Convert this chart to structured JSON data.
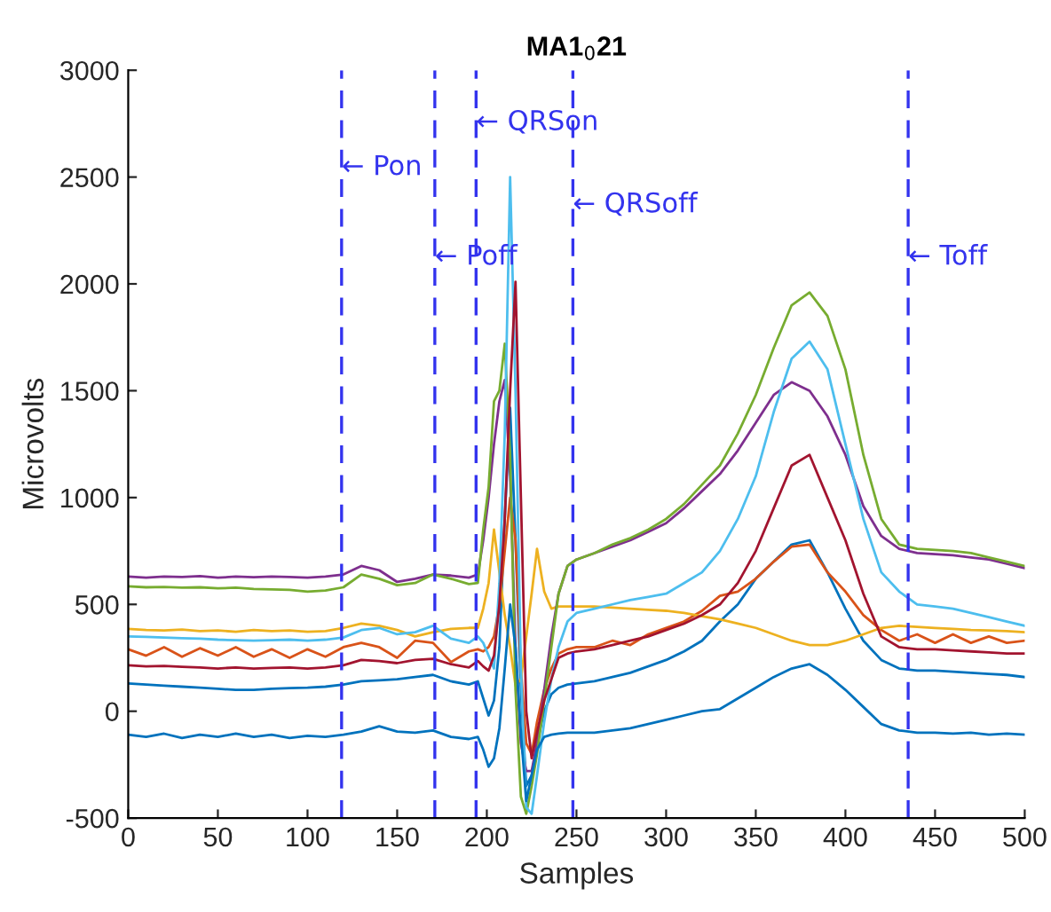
{
  "chart_data": {
    "type": "line",
    "title": "MA1$_{0}$21",
    "xlabel": "Samples",
    "ylabel": "Microvolts",
    "xlim": [
      0,
      500
    ],
    "ylim": [
      -500,
      3000
    ],
    "xticks": [
      0,
      50,
      100,
      150,
      200,
      250,
      300,
      350,
      400,
      450,
      500
    ],
    "yticks": [
      -500,
      0,
      500,
      1000,
      1500,
      2000,
      2500,
      3000
    ],
    "grid": false,
    "legend": false,
    "line_style": "solid",
    "marker": "none",
    "x": [
      0,
      10,
      20,
      30,
      40,
      50,
      60,
      70,
      80,
      90,
      100,
      110,
      120,
      130,
      140,
      150,
      160,
      170,
      180,
      190,
      195,
      198,
      201,
      204,
      207,
      210,
      213,
      216,
      219,
      222,
      225,
      228,
      232,
      236,
      240,
      245,
      250,
      260,
      270,
      280,
      290,
      300,
      310,
      320,
      330,
      340,
      350,
      360,
      370,
      380,
      390,
      400,
      410,
      420,
      430,
      440,
      450,
      460,
      470,
      480,
      490,
      500
    ],
    "series": [
      {
        "color": "#0072bd",
        "values": [
          130,
          125,
          120,
          115,
          110,
          105,
          100,
          100,
          105,
          108,
          110,
          115,
          125,
          140,
          145,
          150,
          160,
          170,
          140,
          125,
          140,
          60,
          -20,
          50,
          300,
          900,
          1420,
          800,
          100,
          -350,
          -300,
          -150,
          0,
          80,
          110,
          125,
          130,
          140,
          160,
          180,
          210,
          240,
          280,
          330,
          420,
          500,
          620,
          700,
          780,
          800,
          650,
          480,
          330,
          240,
          200,
          190,
          190,
          185,
          180,
          175,
          170,
          160
        ]
      },
      {
        "color": "#d95319",
        "values": [
          290,
          260,
          300,
          255,
          295,
          260,
          300,
          255,
          290,
          250,
          290,
          255,
          300,
          320,
          300,
          250,
          330,
          320,
          230,
          280,
          290,
          280,
          300,
          350,
          500,
          750,
          1000,
          800,
          200,
          -150,
          -200,
          -50,
          100,
          200,
          270,
          290,
          300,
          300,
          330,
          310,
          360,
          390,
          420,
          470,
          540,
          560,
          620,
          700,
          770,
          780,
          650,
          560,
          450,
          380,
          330,
          360,
          320,
          360,
          320,
          350,
          320,
          330
        ]
      },
      {
        "color": "#edb120",
        "values": [
          385,
          380,
          378,
          382,
          375,
          378,
          372,
          380,
          375,
          378,
          372,
          375,
          390,
          410,
          400,
          380,
          350,
          370,
          385,
          390,
          390,
          480,
          600,
          850,
          650,
          450,
          300,
          120,
          150,
          350,
          550,
          760,
          560,
          480,
          490,
          490,
          490,
          490,
          485,
          480,
          475,
          470,
          460,
          445,
          430,
          410,
          390,
          360,
          330,
          310,
          310,
          330,
          360,
          390,
          400,
          395,
          390,
          385,
          380,
          378,
          375,
          370
        ]
      },
      {
        "color": "#7e2f8e",
        "values": [
          630,
          625,
          630,
          628,
          632,
          625,
          630,
          627,
          630,
          628,
          625,
          630,
          640,
          680,
          660,
          605,
          620,
          640,
          635,
          625,
          640,
          800,
          1000,
          1250,
          1450,
          1550,
          1100,
          300,
          -150,
          -280,
          -280,
          -150,
          100,
          350,
          550,
          680,
          710,
          740,
          770,
          800,
          840,
          880,
          950,
          1030,
          1110,
          1220,
          1350,
          1480,
          1540,
          1500,
          1380,
          1200,
          960,
          820,
          760,
          740,
          735,
          730,
          720,
          710,
          690,
          670
        ]
      },
      {
        "color": "#77ac30",
        "values": [
          585,
          580,
          582,
          578,
          580,
          575,
          578,
          572,
          570,
          568,
          560,
          565,
          580,
          640,
          620,
          590,
          600,
          640,
          620,
          595,
          600,
          850,
          1050,
          1450,
          1500,
          1720,
          1200,
          100,
          -400,
          -480,
          -350,
          -200,
          50,
          300,
          550,
          680,
          710,
          740,
          780,
          810,
          850,
          900,
          970,
          1060,
          1150,
          1300,
          1480,
          1700,
          1900,
          1960,
          1850,
          1600,
          1200,
          900,
          780,
          760,
          755,
          750,
          740,
          720,
          700,
          680
        ]
      },
      {
        "color": "#4dbeee",
        "values": [
          350,
          348,
          345,
          342,
          340,
          335,
          332,
          330,
          332,
          335,
          330,
          335,
          345,
          380,
          390,
          360,
          370,
          400,
          340,
          320,
          350,
          320,
          260,
          200,
          600,
          1300,
          2500,
          1500,
          200,
          -450,
          -480,
          -300,
          -50,
          150,
          300,
          420,
          460,
          480,
          500,
          520,
          535,
          550,
          600,
          650,
          750,
          900,
          1100,
          1400,
          1650,
          1730,
          1600,
          1250,
          900,
          650,
          560,
          500,
          490,
          480,
          460,
          440,
          420,
          400
        ]
      },
      {
        "color": "#a2142f",
        "values": [
          215,
          210,
          212,
          208,
          205,
          200,
          205,
          200,
          203,
          205,
          200,
          205,
          215,
          240,
          235,
          225,
          240,
          245,
          220,
          205,
          235,
          210,
          190,
          260,
          500,
          900,
          1500,
          2010,
          1000,
          0,
          -220,
          -100,
          50,
          150,
          250,
          270,
          280,
          290,
          310,
          330,
          350,
          380,
          410,
          450,
          500,
          600,
          750,
          950,
          1150,
          1200,
          1000,
          800,
          550,
          350,
          300,
          290,
          290,
          285,
          280,
          275,
          270,
          270
        ]
      },
      {
        "color": "#0072bd",
        "values": [
          -110,
          -120,
          -105,
          -125,
          -110,
          -120,
          -105,
          -120,
          -110,
          -125,
          -115,
          -120,
          -110,
          -95,
          -70,
          -95,
          -100,
          -90,
          -120,
          -130,
          -120,
          -180,
          -260,
          -220,
          -80,
          200,
          500,
          300,
          -100,
          -420,
          -300,
          -180,
          -120,
          -110,
          -105,
          -100,
          -100,
          -100,
          -90,
          -80,
          -60,
          -40,
          -20,
          0,
          10,
          60,
          110,
          160,
          200,
          220,
          170,
          100,
          20,
          -60,
          -90,
          -100,
          -100,
          -105,
          -100,
          -110,
          -105,
          -110
        ]
      }
    ],
    "ref_lines": [
      {
        "axis": "x",
        "value": 119,
        "label": "← Pon",
        "color": "#3333ee",
        "line_style": "dashed"
      },
      {
        "axis": "x",
        "value": 171,
        "label": "← Poff",
        "color": "#3333ee",
        "line_style": "dashed"
      },
      {
        "axis": "x",
        "value": 194,
        "label": "← QRSon",
        "color": "#3333ee",
        "line_style": "dashed"
      },
      {
        "axis": "x",
        "value": 248,
        "label": "← QRSoff",
        "color": "#3333ee",
        "line_style": "dashed"
      },
      {
        "axis": "x",
        "value": 435,
        "label": "← Toff",
        "color": "#3333ee",
        "line_style": "dashed"
      }
    ]
  }
}
